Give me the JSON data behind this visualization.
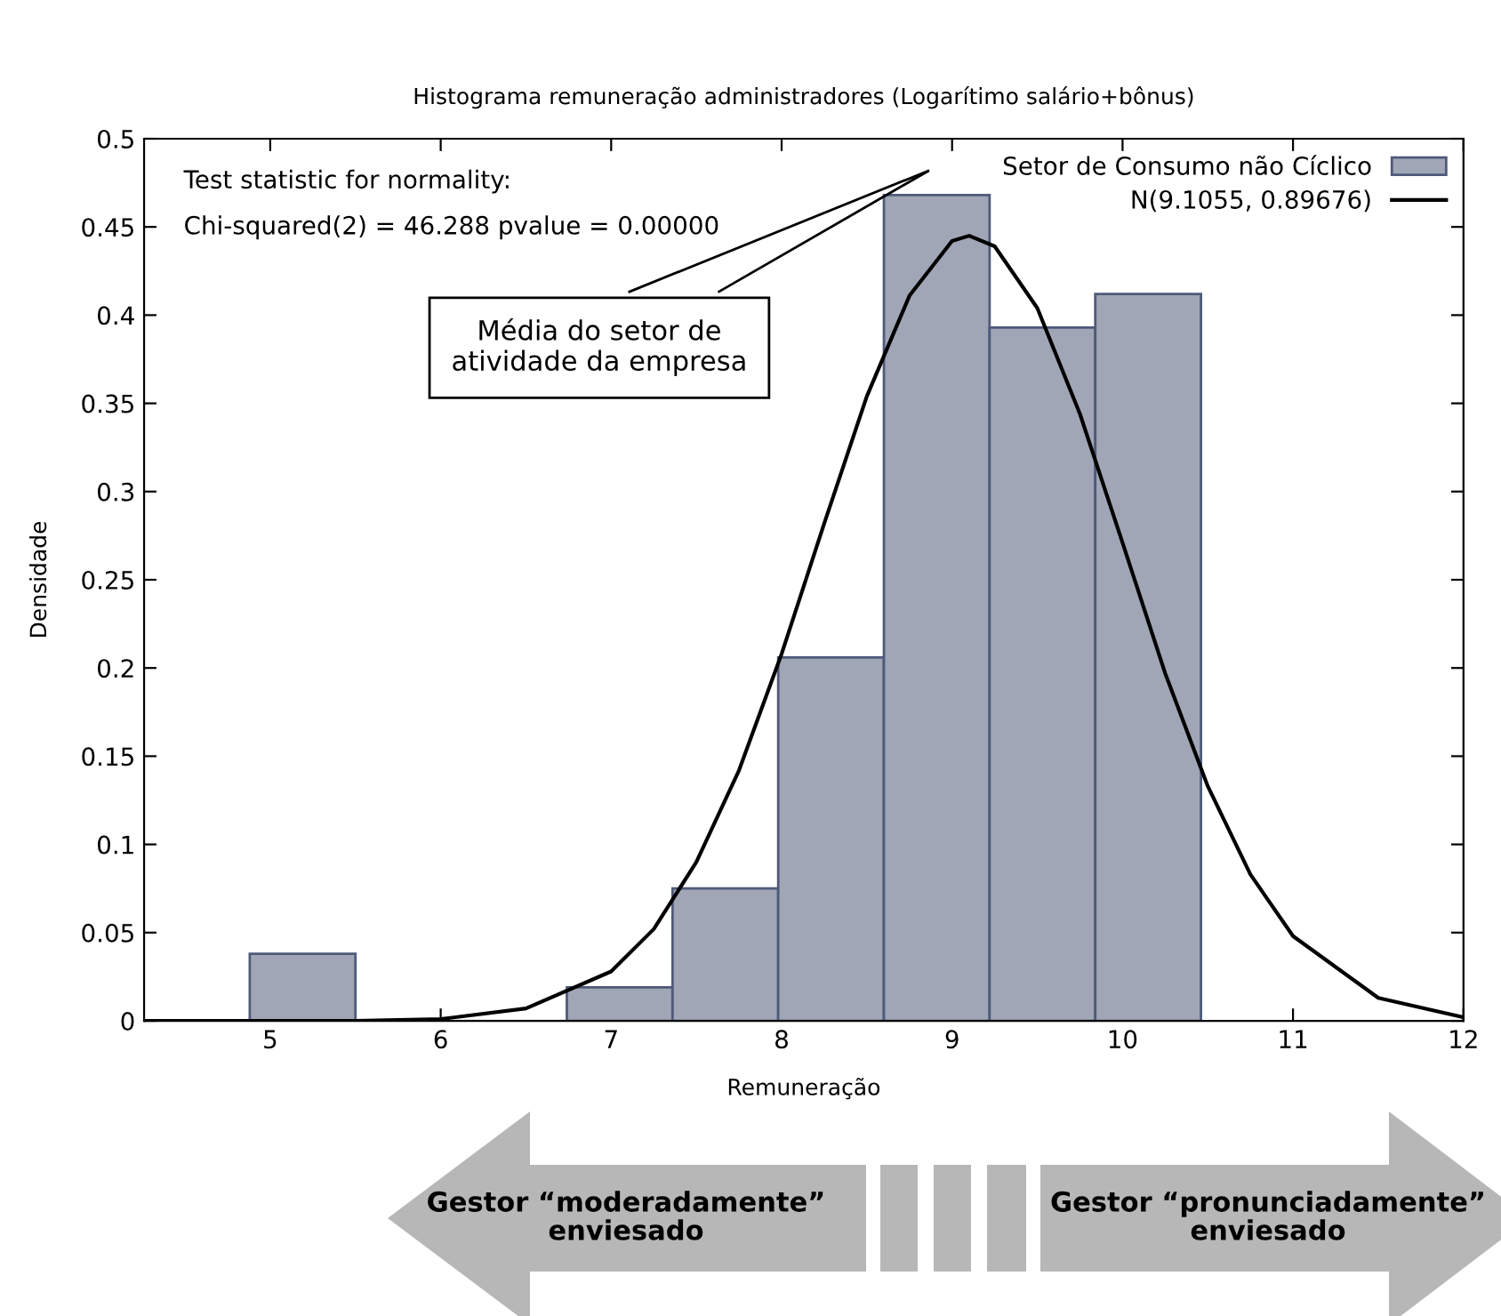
{
  "chart_data": {
    "type": "histogram",
    "title": "Histograma remuneração administradores (Logarítimo salário+bônus)",
    "xlabel": "Remuneração",
    "ylabel": "Densidade",
    "bins": [
      4.88,
      5.5,
      6.12,
      6.74,
      7.36,
      7.98,
      8.6,
      9.22,
      9.84,
      10.46
    ],
    "series": [
      {
        "name": "Setor de Consumo não Cíclico",
        "color": "#a0a6b5",
        "values": [
          0.038,
          0,
          0,
          0.019,
          0.075,
          0.206,
          0.468,
          0.393,
          0.412
        ]
      },
      {
        "type": "line",
        "name": "N(9.1055, 0.89676)",
        "color": "#000000",
        "x": [
          4.26,
          5,
          5.5,
          6,
          6.5,
          7,
          7.25,
          7.5,
          7.75,
          8,
          8.25,
          8.5,
          8.75,
          9,
          9.1,
          9.25,
          9.5,
          9.75,
          10,
          10.25,
          10.5,
          10.75,
          11,
          11.5,
          12
        ],
        "values": [
          0,
          0,
          0,
          0.001,
          0.007,
          0.028,
          0.052,
          0.09,
          0.142,
          0.208,
          0.282,
          0.354,
          0.411,
          0.442,
          0.445,
          0.439,
          0.404,
          0.344,
          0.271,
          0.197,
          0.133,
          0.083,
          0.048,
          0.013,
          0.002
        ]
      }
    ],
    "xlim": [
      4.26,
      12
    ],
    "ylim": [
      0,
      0.5
    ],
    "xticks": [
      5,
      6,
      7,
      8,
      9,
      10,
      11,
      12
    ],
    "yticks": [
      0,
      0.05,
      0.1,
      0.15,
      0.2,
      0.25,
      0.3,
      0.35,
      0.4,
      0.45,
      0.5
    ],
    "legend": "top right",
    "annotations": [
      "Test statistic for normality:",
      "Chi-squared(2) = 46.288 pvalue = 0.00000",
      "Média do setor de\natividade da empresa",
      "Gestor “moderadamente”\nenviesado",
      "Gestor “pronunciadamente”\nenviesado"
    ]
  }
}
